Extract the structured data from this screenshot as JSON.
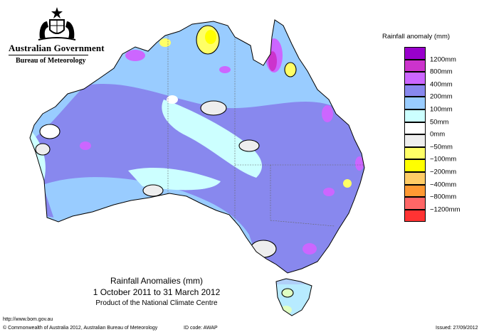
{
  "header": {
    "government": "Australian Government",
    "bureau": "Bureau of Meteorology"
  },
  "legend": {
    "title": "Rainfall anomaly (mm)",
    "bins": [
      {
        "color": "#9900cc",
        "label": "1200mm"
      },
      {
        "color": "#cc33cc",
        "label": "800mm"
      },
      {
        "color": "#cc66ff",
        "label": "400mm"
      },
      {
        "color": "#8888ee",
        "label": "200mm"
      },
      {
        "color": "#99ccff",
        "label": "100mm"
      },
      {
        "color": "#ccffff",
        "label": "50mm"
      },
      {
        "color": "#ffffff",
        "label": "0mm"
      },
      {
        "color": "#eeeeee",
        "label": "−50mm"
      },
      {
        "color": "#ffff66",
        "label": "−100mm"
      },
      {
        "color": "#ffff00",
        "label": "−200mm"
      },
      {
        "color": "#ffcc66",
        "label": "−400mm"
      },
      {
        "color": "#ff9933",
        "label": "−800mm"
      },
      {
        "color": "#ff6666",
        "label": "−1200mm"
      },
      {
        "color": "#ff3333",
        "label": ""
      }
    ]
  },
  "map": {
    "title": "Rainfall Anomalies (mm)",
    "period": "1 October 2011 to 31 March 2012",
    "product": "Product of the National Climate Centre"
  },
  "footer": {
    "url": "http://www.bom.gov.au",
    "copyright": "© Commonwealth of Australia 2012, Australian Bureau of Meteorology",
    "id_code": "ID code: AWAP",
    "issued": "Issued: 27/09/2012"
  }
}
